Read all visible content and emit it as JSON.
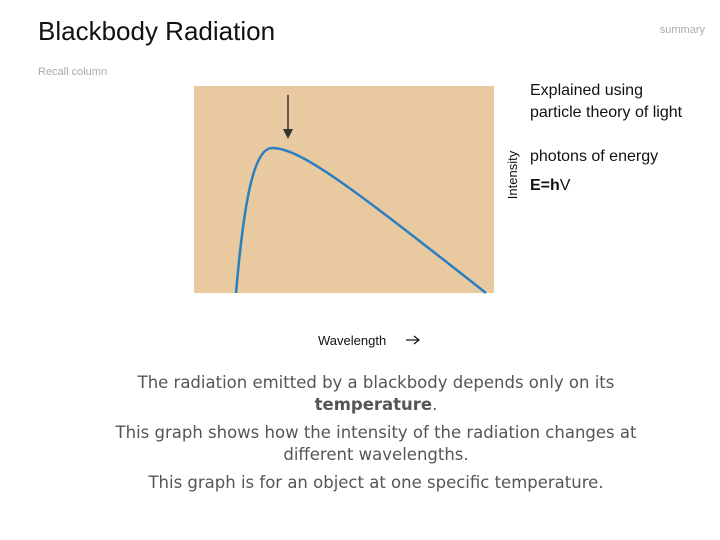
{
  "header": {
    "title": "Blackbody Radiation",
    "tag": "summary",
    "note": "Recall column"
  },
  "graph": {
    "y_label": "Intensity",
    "x_label": "Wavelength"
  },
  "side": {
    "line1": "Explained using",
    "line2": "particle theory of light",
    "line3": "photons of energy",
    "formula_bold": "E=h",
    "formula_symbol": "V"
  },
  "body": {
    "p1_start": "The radiation emitted by a blackbody depends only on its",
    "p1_bold": "temperature",
    "p1_end": ".",
    "p2_line1": "This graph shows how the intensity of the radiation changes at",
    "p2_line2": "different wavelengths.",
    "p3": "This graph is for an object at one specific temperature."
  }
}
